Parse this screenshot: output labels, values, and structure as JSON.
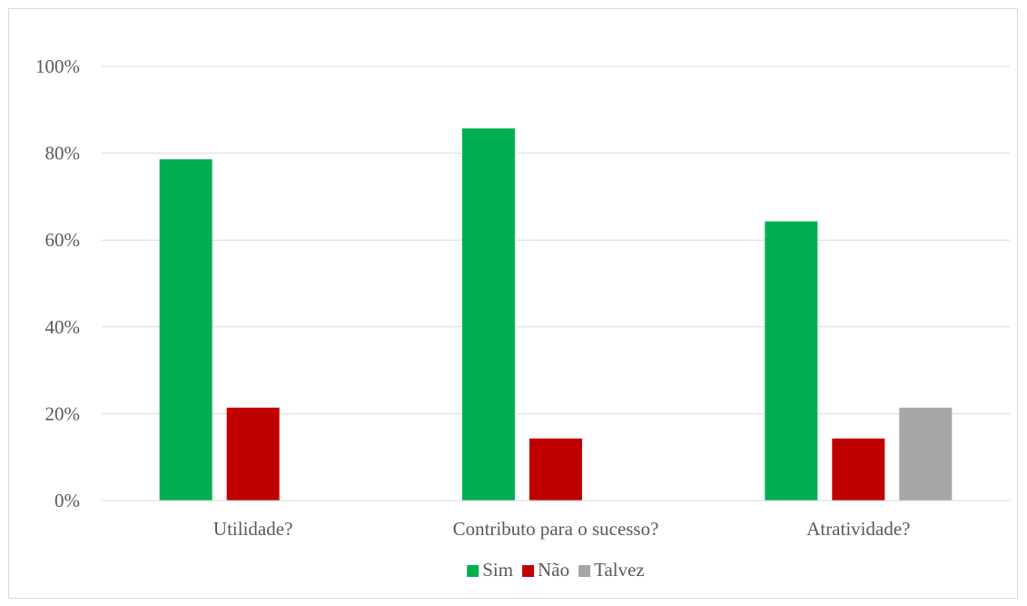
{
  "chart_data": {
    "type": "bar",
    "title": "",
    "xlabel": "",
    "ylabel": "",
    "categories": [
      "Utilidade?",
      "Contributo para o sucesso?",
      "Atratividade?"
    ],
    "series": [
      {
        "name": "Sim",
        "color": "#00b050",
        "values": [
          78.6,
          85.7,
          64.3
        ]
      },
      {
        "name": "Não",
        "color": "#c00000",
        "values": [
          21.4,
          14.3,
          14.3
        ]
      },
      {
        "name": "Talvez",
        "color": "#a6a6a6",
        "values": [
          0,
          0,
          21.4
        ]
      }
    ],
    "ylim": [
      0,
      100
    ],
    "yticks": [
      "0%",
      "20%",
      "40%",
      "60%",
      "80%",
      "100%"
    ],
    "grid": true,
    "legend": "bottom"
  }
}
